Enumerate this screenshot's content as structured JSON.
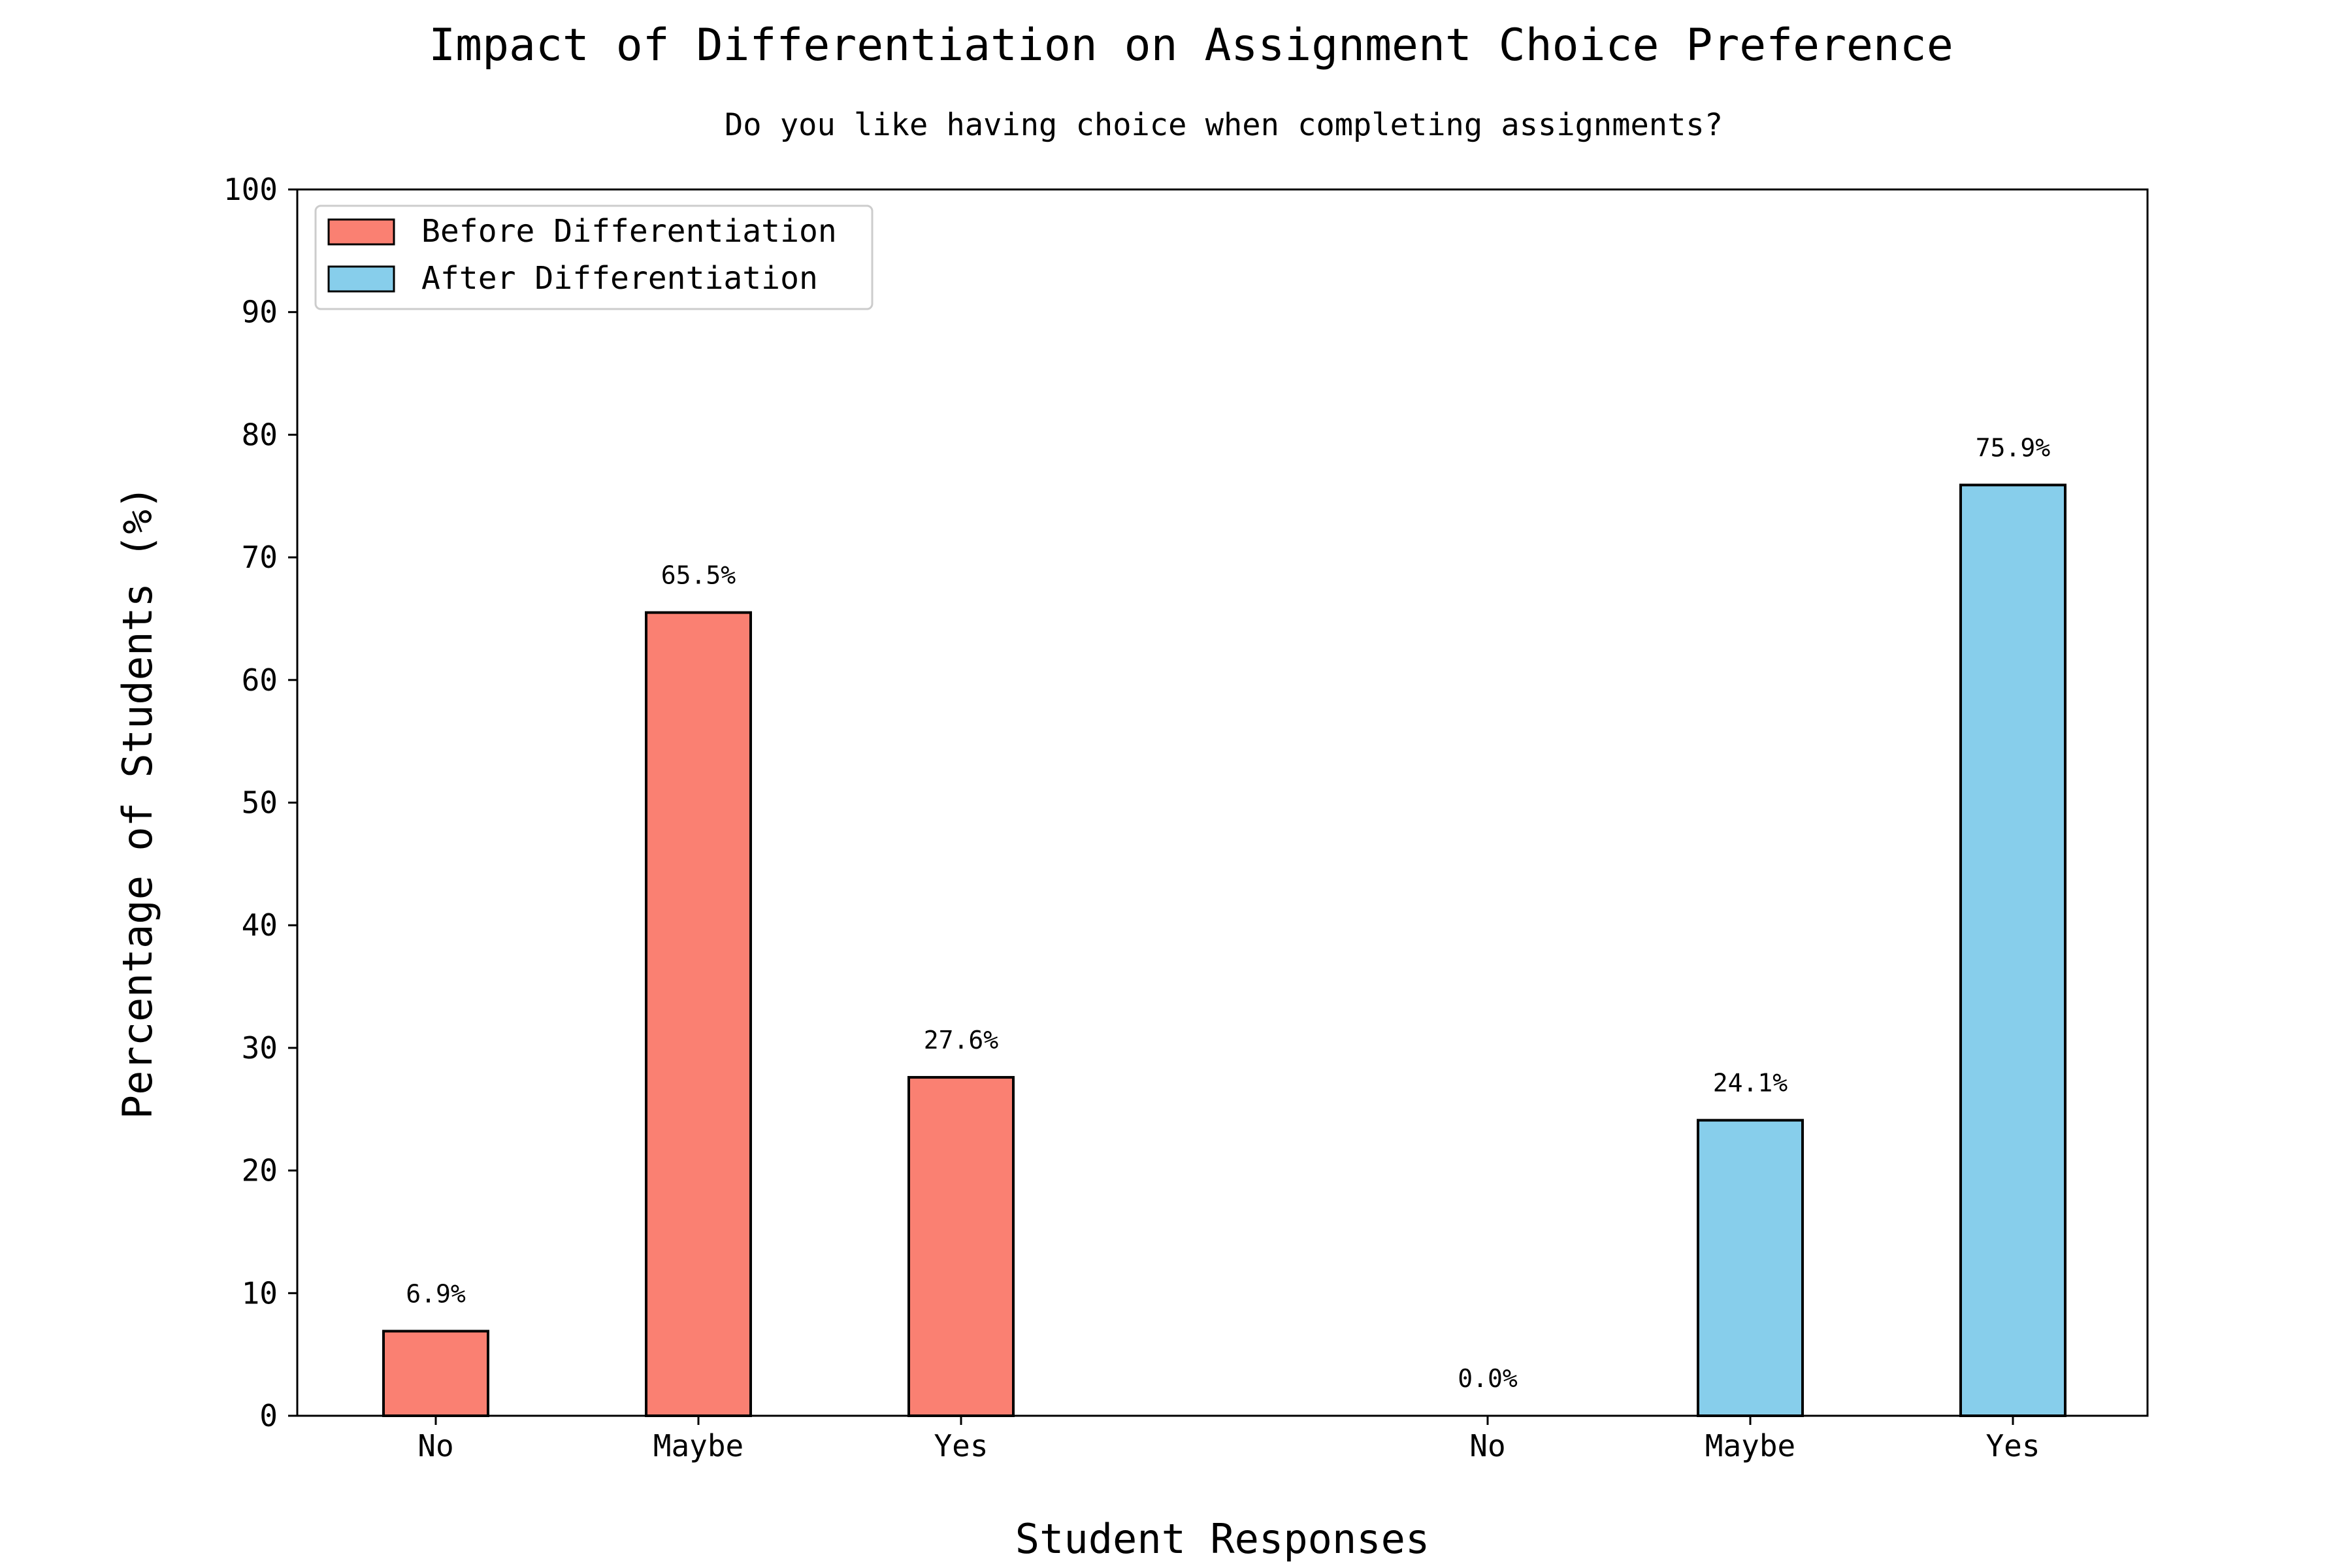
{
  "chart_data": {
    "type": "bar",
    "title": "Impact of Differentiation on Assignment Choice Preference",
    "subtitle": "Do you like having choice when completing assignments?",
    "xlabel": "Student Responses",
    "ylabel": "Percentage of Students (%)",
    "ylim": [
      0,
      100
    ],
    "yticks": [
      0,
      10,
      20,
      30,
      40,
      50,
      60,
      70,
      80,
      90,
      100
    ],
    "grid": false,
    "legend_position": "top-left",
    "categories": [
      "No",
      "Maybe",
      "Yes"
    ],
    "series": [
      {
        "name": "Before Differentiation",
        "color": "#fa8072",
        "values": [
          6.9,
          65.5,
          27.6
        ],
        "labels": [
          "6.9%",
          "65.5%",
          "27.6%"
        ]
      },
      {
        "name": "After Differentiation",
        "color": "#87ceeb",
        "values": [
          0.0,
          24.1,
          75.9
        ],
        "labels": [
          "0.0%",
          "24.1%",
          "75.9%"
        ]
      }
    ]
  }
}
